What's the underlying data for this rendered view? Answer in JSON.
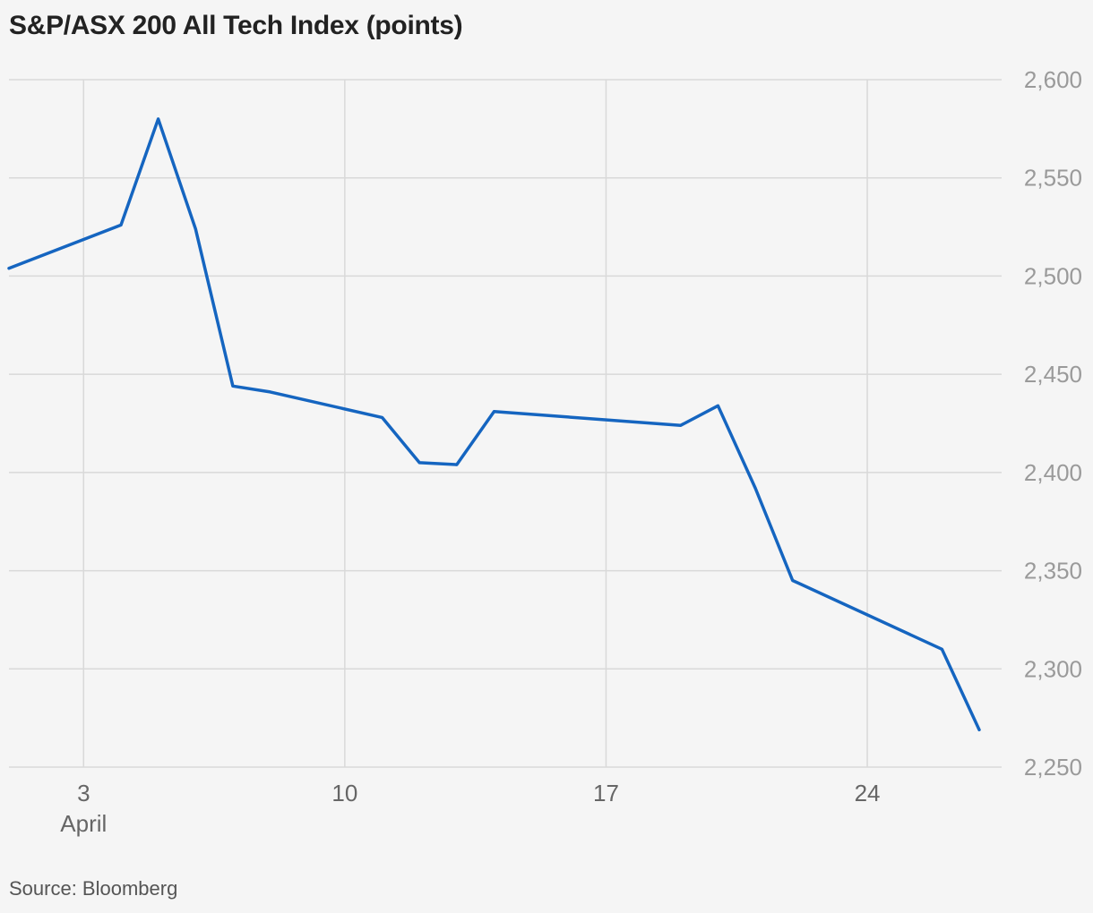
{
  "chart_data": {
    "type": "line",
    "title": "S&P/ASX 200 All Tech Index (points)",
    "source": "Source: Bloomberg",
    "xlabel": "",
    "ylabel": "",
    "ylim": [
      2250,
      2600
    ],
    "y_ticks": [
      2250,
      2300,
      2350,
      2400,
      2450,
      2500,
      2550,
      2600
    ],
    "y_tick_labels": [
      "2,250",
      "2,300",
      "2,350",
      "2,400",
      "2,450",
      "2,500",
      "2,550",
      "2,600"
    ],
    "xlim": [
      1,
      27.6
    ],
    "x_ticks": [
      {
        "day": 3,
        "label": "3",
        "sublabel": "April"
      },
      {
        "day": 10,
        "label": "10",
        "sublabel": ""
      },
      {
        "day": 17,
        "label": "17",
        "sublabel": ""
      },
      {
        "day": 24,
        "label": "24",
        "sublabel": ""
      }
    ],
    "grid": true,
    "y_axis_position": "right",
    "series": [
      {
        "color": "#1565c0",
        "points": [
          {
            "x": 1,
            "y": 2504
          },
          {
            "x": 4,
            "y": 2526
          },
          {
            "x": 5,
            "y": 2580
          },
          {
            "x": 6,
            "y": 2524
          },
          {
            "x": 7,
            "y": 2444
          },
          {
            "x": 8,
            "y": 2441
          },
          {
            "x": 11,
            "y": 2428
          },
          {
            "x": 12,
            "y": 2405
          },
          {
            "x": 13,
            "y": 2404
          },
          {
            "x": 14,
            "y": 2431
          },
          {
            "x": 19,
            "y": 2424
          },
          {
            "x": 20,
            "y": 2434
          },
          {
            "x": 21,
            "y": 2392
          },
          {
            "x": 22,
            "y": 2345
          },
          {
            "x": 26,
            "y": 2310
          },
          {
            "x": 27,
            "y": 2269
          }
        ]
      }
    ]
  }
}
